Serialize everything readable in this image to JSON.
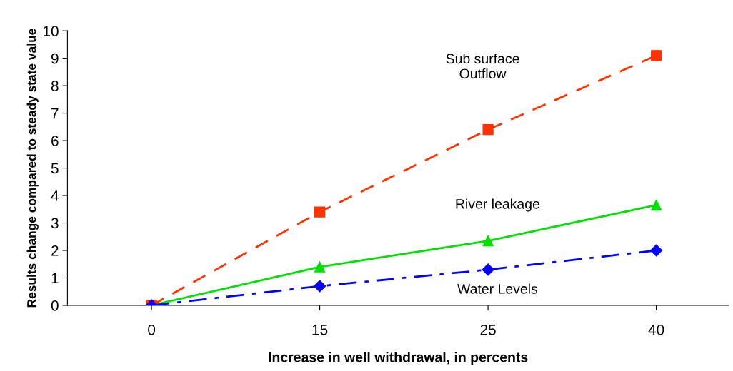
{
  "chart_data": {
    "type": "line",
    "xlabel": "Increase in well withdrawal, in percents",
    "ylabel": "Results change compared to steady state value",
    "categories": [
      "0",
      "15",
      "25",
      "40"
    ],
    "series": [
      {
        "name": "Sub surface\nOutflow",
        "color": "#ff3300",
        "values": [
          0,
          3.4,
          6.4,
          9.1
        ],
        "marker": "square",
        "line_style": "dashed"
      },
      {
        "name": "River leakage",
        "color": "#00e000",
        "values": [
          0,
          1.4,
          2.35,
          3.65
        ],
        "marker": "triangle",
        "line_style": "solid"
      },
      {
        "name": "Water Levels",
        "color": "#0000ff",
        "values": [
          0,
          0.7,
          1.3,
          2.0
        ],
        "marker": "diamond",
        "line_style": "dashdot"
      }
    ],
    "ylim": [
      0,
      10
    ],
    "yticks": [
      0,
      1,
      2,
      3,
      4,
      5,
      6,
      7,
      8,
      9,
      10
    ],
    "grid": false,
    "legend": false
  }
}
